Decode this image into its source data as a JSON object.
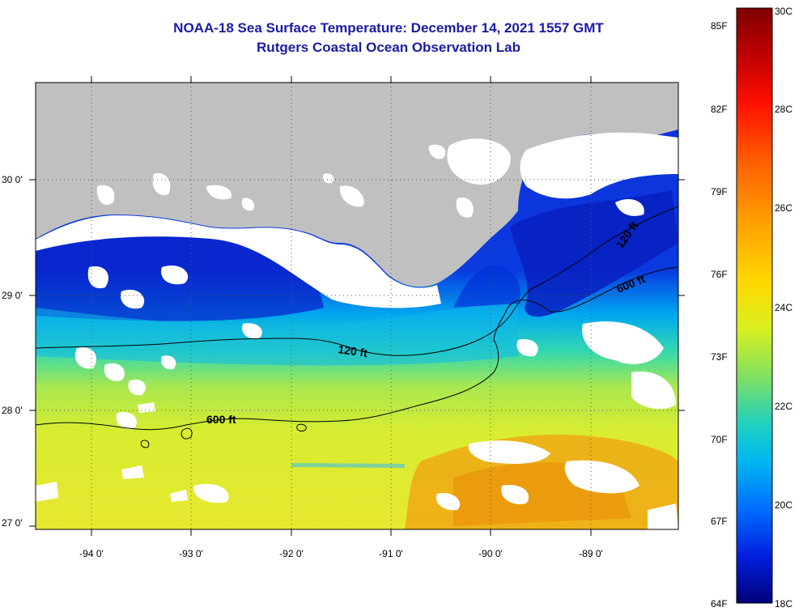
{
  "title": "NOAA-18 Sea Surface Temperature:  December 14, 2021 1557 GMT",
  "subtitle": "Rutgers Coastal Ocean Observation Lab",
  "lat_labels": [
    "30 0'",
    "29 0'",
    "28 0'",
    "27 0'"
  ],
  "lon_labels": [
    "-94 0'",
    "-93 0'",
    "-92 0'",
    "-91 0'",
    "-90 0'",
    "-89 0'"
  ],
  "contours": {
    "a": "120 ft",
    "b": "120 ft",
    "c": "600 ft",
    "d": "600 ft"
  },
  "colorbar": {
    "f_labels": [
      "85F",
      "82F",
      "79F",
      "76F",
      "73F",
      "70F",
      "67F",
      "64F"
    ],
    "c_labels": [
      "30C",
      "28C",
      "26C",
      "24C",
      "22C",
      "20C",
      "18C"
    ],
    "colors": [
      "#800000",
      "#c80000",
      "#ff2000",
      "#ff6a00",
      "#ff9f00",
      "#ffd800",
      "#e6f020",
      "#9fe040",
      "#40d8a0",
      "#00c8e0",
      "#0090ff",
      "#0040ff",
      "#0000c8",
      "#00007a"
    ]
  },
  "colors": {
    "land": "#c0c0c0",
    "cloud": "#ffffff",
    "text_title": "#1a1aa6"
  }
}
